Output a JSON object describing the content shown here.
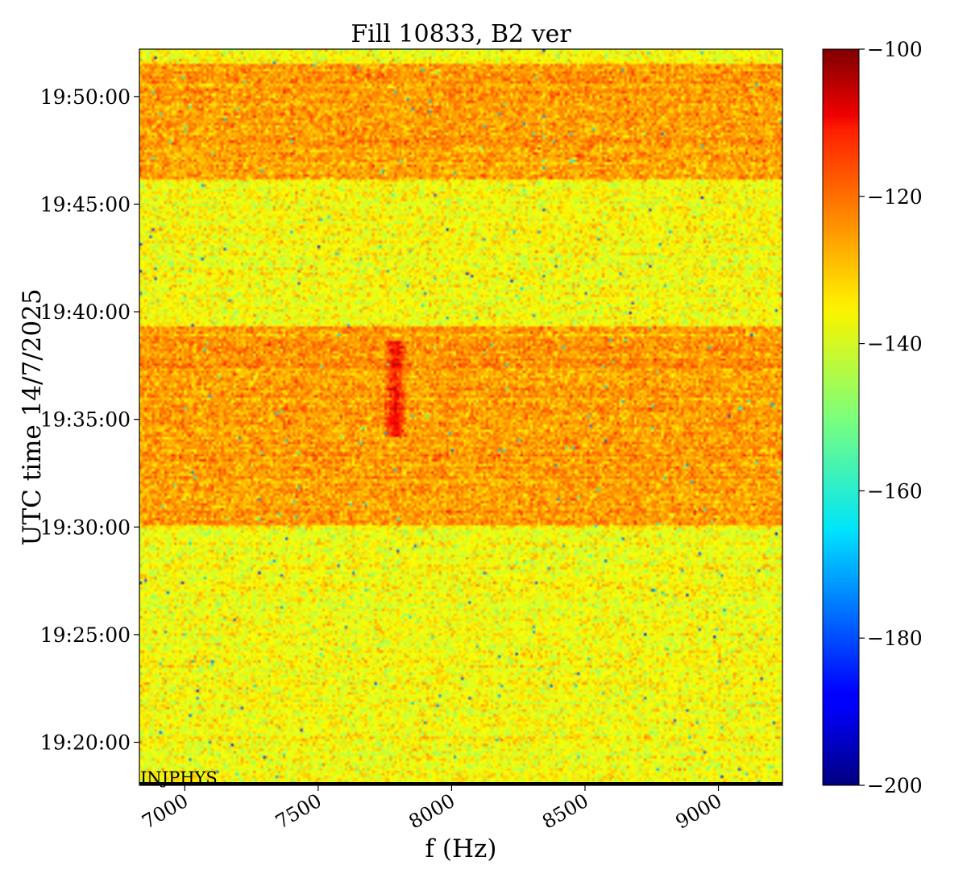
{
  "chart_data": {
    "type": "heatmap",
    "title": "Fill 10833, B2 ver",
    "xlabel": "f (Hz)",
    "ylabel": "UTC time 14/7/2025",
    "xlim": [
      6830,
      9240
    ],
    "x_ticks": [
      {
        "value": 7000,
        "label": "7000"
      },
      {
        "value": 7500,
        "label": "7500"
      },
      {
        "value": 8000,
        "label": "8000"
      },
      {
        "value": 8500,
        "label": "8500"
      },
      {
        "value": 9000,
        "label": "9000"
      }
    ],
    "y_ticks": [
      {
        "label": "19:50:00"
      },
      {
        "label": "19:45:00"
      },
      {
        "label": "19:40:00"
      },
      {
        "label": "19:35:00"
      },
      {
        "label": "19:30:00"
      },
      {
        "label": "19:25:00"
      },
      {
        "label": "19:20:00"
      }
    ],
    "ylim_min": [
      19.3,
      19.87
    ],
    "colorbar": {
      "colormap": "jet",
      "range": [
        -200,
        -100
      ],
      "ticks": [
        {
          "value": -100,
          "label": "−100"
        },
        {
          "value": -120,
          "label": "−120"
        },
        {
          "value": -140,
          "label": "−140"
        },
        {
          "value": -160,
          "label": "−160"
        },
        {
          "value": -180,
          "label": "−180"
        },
        {
          "value": -200,
          "label": "−200"
        }
      ]
    },
    "annotation": "INJPHYS",
    "bands": [
      {
        "time_from": "19:46:10",
        "time_to": "19:51:30",
        "level_dB": -128
      },
      {
        "time_from": "19:30:05",
        "time_to": "19:39:20",
        "level_dB": -128
      }
    ],
    "background_level_dB": -138,
    "feature": {
      "f_hz": 7790,
      "time_from": "19:34:10",
      "time_to": "19:38:40",
      "level_dB": -115
    }
  }
}
